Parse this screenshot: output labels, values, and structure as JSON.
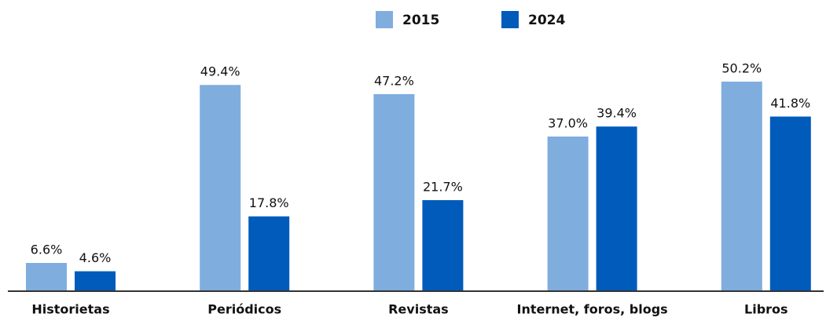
{
  "chart_data": {
    "type": "bar",
    "categories": [
      "Historietas",
      "Periódicos",
      "Revistas",
      "Internet, foros, blogs",
      "Libros"
    ],
    "series": [
      {
        "name": "2015",
        "color": "#7fadde",
        "values": [
          6.6,
          49.4,
          47.2,
          37.0,
          50.2
        ],
        "value_labels": [
          "6.6%",
          "49.4%",
          "47.2%",
          "37.0%",
          "50.2%"
        ]
      },
      {
        "name": "2024",
        "color": "#005bbb",
        "values": [
          4.6,
          17.8,
          21.7,
          39.4,
          41.8
        ],
        "value_labels": [
          "4.6%",
          "17.8%",
          "21.7%",
          "39.4%",
          "41.8%"
        ]
      }
    ],
    "legend": "top"
  }
}
